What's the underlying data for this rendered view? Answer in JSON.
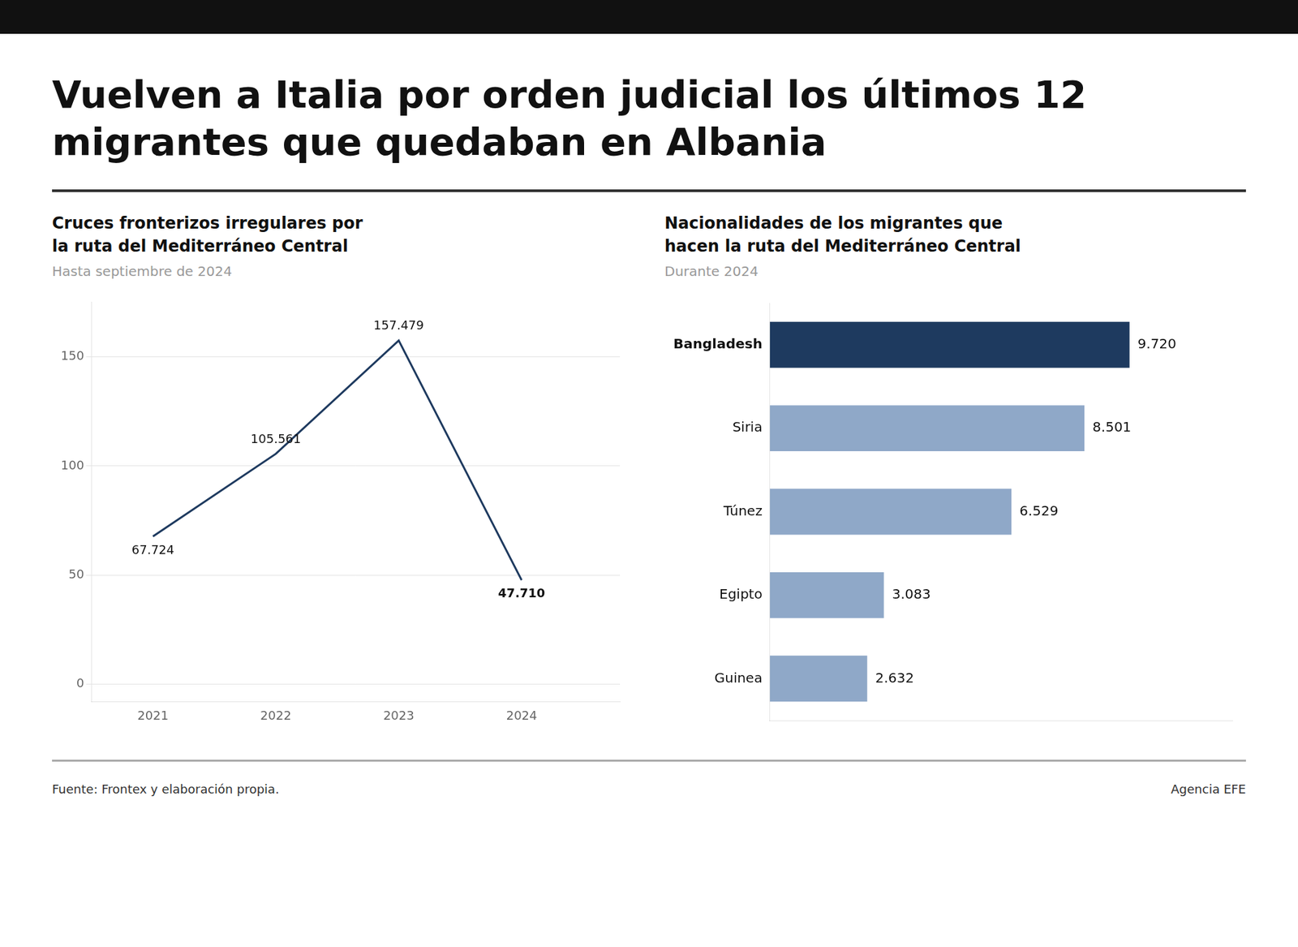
{
  "title": "Vuelven a Italia por orden judicial los últimos 12\nmigrantes que quedaban en Albania",
  "annotations": [
    "Fuente: Frontex y elaboración propia.",
    "Agencia EFE"
  ],
  "chart_data": [
    {
      "type": "line",
      "title": "Cruces fronterizos irregulares por\nla ruta del Mediterráneo Central",
      "subtitle": "Hasta septiembre de 2024",
      "x": [
        2021,
        2022,
        2023,
        2024
      ],
      "values": [
        67.724,
        105.561,
        157.479,
        47.71
      ],
      "value_labels": [
        "67.724",
        "105.561",
        "157.479",
        "47.710"
      ],
      "data_labels": true,
      "color": "#1e3a5f",
      "marker": "none",
      "line_style": "solid",
      "xlim": [
        2020.5,
        2024.8
      ],
      "xticks": [
        2021,
        2022,
        2023,
        2024
      ],
      "ylim": [
        -8,
        175
      ],
      "yticks": [
        0,
        50,
        100,
        150
      ],
      "grid": true
    },
    {
      "type": "bar",
      "orientation": "horizontal",
      "title": "Nacionalidades de los migrantes que\nhacen la ruta del Mediterráneo Central",
      "subtitle": "Durante 2024",
      "categories": [
        "Bangladesh",
        "Siria",
        "Túnez",
        "Egipto",
        "Guinea"
      ],
      "values": [
        9720,
        8501,
        6529,
        3083,
        2632
      ],
      "value_labels": [
        "9.720",
        "8.501",
        "6.529",
        "3.083",
        "2.632"
      ],
      "data_labels": true,
      "colors": [
        "#1e3a5f",
        "#8fa8c8",
        "#8fa8c8",
        "#8fa8c8",
        "#8fa8c8"
      ],
      "xlim": [
        0,
        12500
      ],
      "grid": false,
      "tick_labels": "y"
    }
  ]
}
